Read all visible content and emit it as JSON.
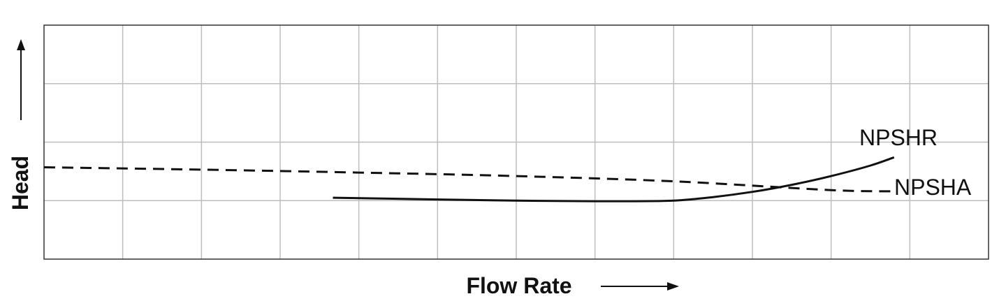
{
  "chart_data": {
    "type": "line",
    "title": "",
    "xlabel": "Flow Rate",
    "ylabel": "Head",
    "xlim": [
      0,
      12
    ],
    "ylim": [
      0,
      4
    ],
    "grid": true,
    "series": [
      {
        "name": "NPSHR",
        "style": "solid",
        "color": "#111111",
        "x": [
          3.67,
          5.0,
          6.0,
          7.0,
          7.5,
          8.0,
          8.5,
          9.0,
          9.5,
          10.0,
          10.5,
          10.8
        ],
        "y": [
          1.05,
          1.02,
          1.0,
          0.99,
          0.99,
          1.0,
          1.06,
          1.15,
          1.27,
          1.42,
          1.6,
          1.74
        ]
      },
      {
        "name": "NPSHA",
        "style": "dashed",
        "color": "#111111",
        "x": [
          0.0,
          2.0,
          4.0,
          6.0,
          8.0,
          10.0,
          10.8
        ],
        "y": [
          1.57,
          1.53,
          1.48,
          1.42,
          1.33,
          1.18,
          1.16
        ]
      }
    ]
  }
}
